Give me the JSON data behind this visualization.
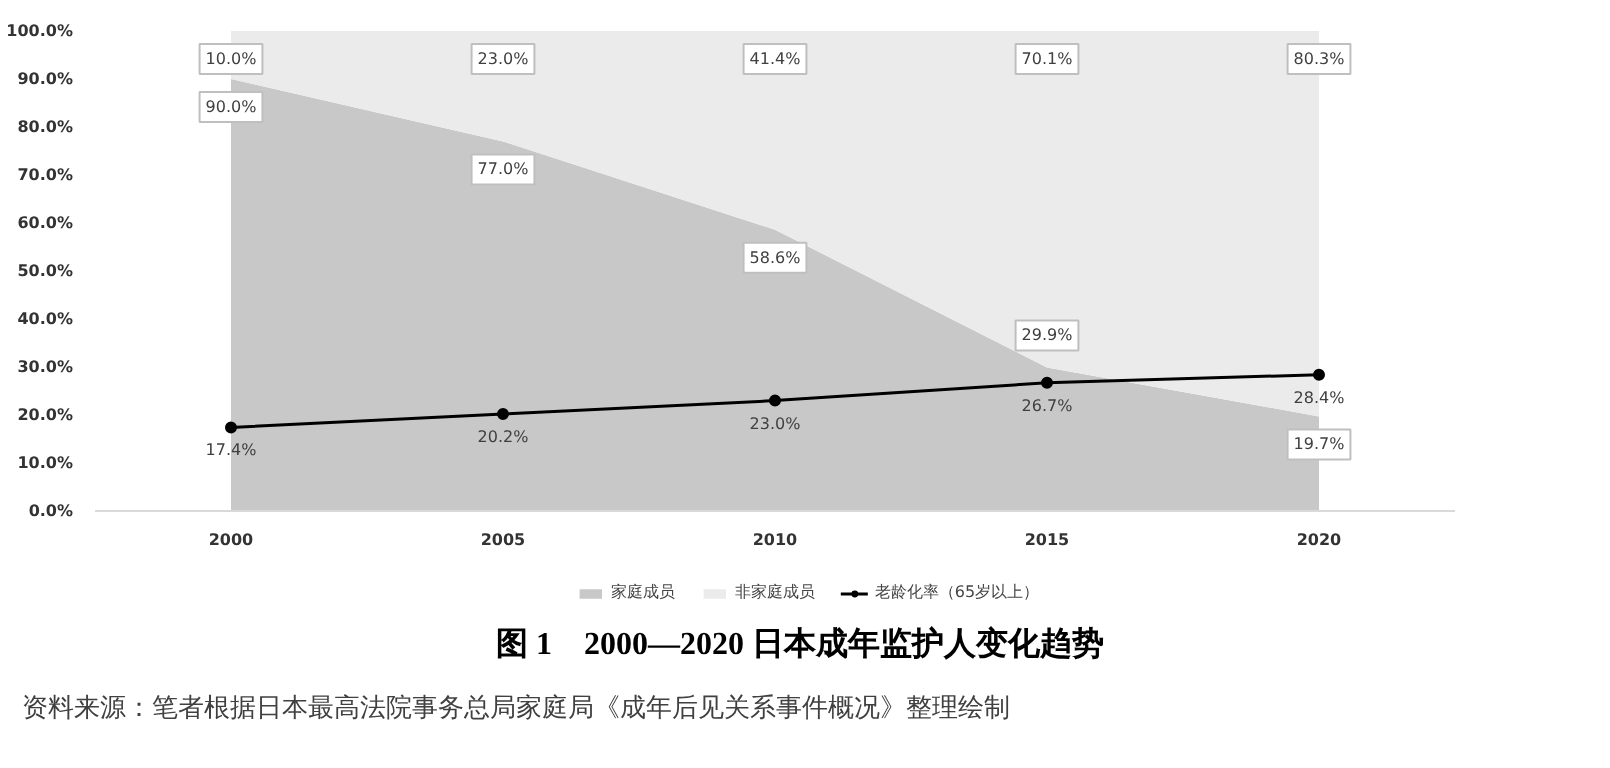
{
  "chart_data": {
    "type": "area",
    "title": "图 1　2000—2020 日本成年监护人变化趋势",
    "annotations": [
      "资料来源：笔者根据日本最高法院事务总局家庭局《成年后见关系事件概况》整理绘制"
    ],
    "x": [
      2000,
      2005,
      2010,
      2015,
      2020
    ],
    "stacked": true,
    "series": [
      {
        "name": "家庭成员",
        "color": "#c8c8c8",
        "values": [
          90.0,
          77.0,
          58.6,
          29.9,
          19.7
        ],
        "value_labels": [
          "90.0%",
          "77.0%",
          "58.6%",
          "29.9%",
          "19.7%"
        ]
      },
      {
        "name": "非家庭成员",
        "color": "#ebebeb",
        "values": [
          10.0,
          23.0,
          41.4,
          70.1,
          80.3
        ],
        "value_labels": [
          "10.0%",
          "23.0%",
          "41.4%",
          "70.1%",
          "80.3%"
        ]
      },
      {
        "name": "老龄化率（65岁以上）",
        "type": "line",
        "color": "#000000",
        "marker": "circle",
        "values": [
          17.4,
          20.2,
          23.0,
          26.7,
          28.4
        ],
        "value_labels": [
          "17.4%",
          "20.2%",
          "23.0%",
          "26.7%",
          "28.4%"
        ]
      }
    ],
    "xlim": [
      1997.5,
      2022.5
    ],
    "xticks": [
      2000,
      2005,
      2010,
      2015,
      2020
    ],
    "ylim": [
      0,
      100
    ],
    "yticks": [
      {
        "value": 0,
        "label": "0.0%"
      },
      {
        "value": 10,
        "label": "10.0%"
      },
      {
        "value": 20,
        "label": "20.0%"
      },
      {
        "value": 30,
        "label": "30.0%"
      },
      {
        "value": 40,
        "label": "40.0%"
      },
      {
        "value": 50,
        "label": "50.0%"
      },
      {
        "value": 60,
        "label": "60.0%"
      },
      {
        "value": 70,
        "label": "70.0%"
      },
      {
        "value": 80,
        "label": "80.0%"
      },
      {
        "value": 90,
        "label": "90.0%"
      },
      {
        "value": 100,
        "label": "100.0%"
      }
    ],
    "grid": false,
    "legend": "bottom"
  }
}
